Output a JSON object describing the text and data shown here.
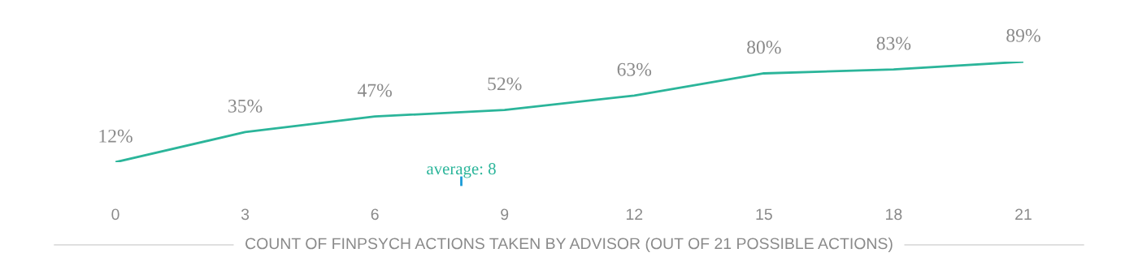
{
  "chart_data": {
    "type": "line",
    "xlabel": "COUNT OF FINPSYCH ACTIONS TAKEN BY ADVISOR (OUT OF 21 POSSIBLE ACTIONS)",
    "x": [
      0,
      3,
      6,
      9,
      12,
      15,
      18,
      21
    ],
    "series": [
      {
        "color": "#2bb59a",
        "values": [
          12,
          35,
          47,
          52,
          63,
          80,
          83,
          89
        ],
        "value_labels": [
          "12%",
          "35%",
          "47%",
          "52%",
          "63%",
          "80%",
          "83%",
          "89%"
        ]
      }
    ],
    "xlim": [
      0,
      21
    ],
    "xticks": [
      0,
      3,
      6,
      9,
      12,
      15,
      18,
      21
    ],
    "tick_labels": "x",
    "grid": false,
    "legend": false,
    "marker": "none",
    "line_style": "solid",
    "ref_lines": [
      {
        "axis": "x",
        "value": 8,
        "label": "average: 8",
        "color": "#1a9bd7"
      }
    ]
  }
}
